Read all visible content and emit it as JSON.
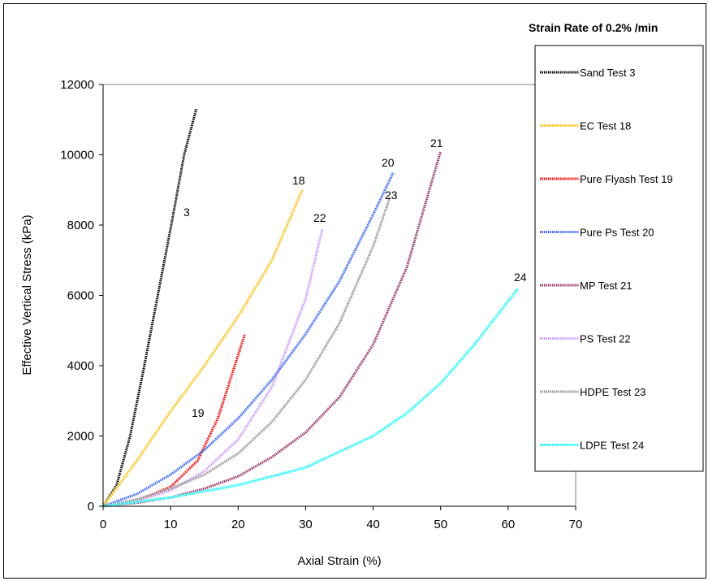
{
  "chart_data": {
    "type": "line",
    "title": "",
    "xlabel": "Axial Strain (%)",
    "ylabel": "Effective Vertical Stress (kPa)",
    "xlim": [
      0,
      70
    ],
    "ylim": [
      0,
      12000
    ],
    "x_ticks": [
      0,
      10,
      20,
      30,
      40,
      50,
      60,
      70
    ],
    "y_ticks": [
      0,
      2000,
      4000,
      6000,
      8000,
      10000,
      12000
    ],
    "grid": false,
    "legend": {
      "title": "Strain Rate of 0.2% /min",
      "placement": "right"
    },
    "series": [
      {
        "name": "Sand Test 3",
        "label": "3",
        "color": "#000000",
        "x": [
          0,
          2,
          4,
          6,
          8,
          10,
          12,
          13.8
        ],
        "y": [
          0,
          600,
          2000,
          3900,
          5900,
          7900,
          10000,
          11300
        ]
      },
      {
        "name": "EC Test 18",
        "label": "18",
        "color": "#FFC000",
        "x": [
          0,
          5,
          10,
          15,
          20,
          25,
          29.5
        ],
        "y": [
          0,
          1300,
          2700,
          4000,
          5400,
          7000,
          9000
        ]
      },
      {
        "name": "Pure Flyash Test 19",
        "label": "19",
        "color": "#FF0000",
        "x": [
          0,
          5,
          10,
          14,
          17,
          19,
          21
        ],
        "y": [
          0,
          150,
          550,
          1300,
          2500,
          3700,
          4900
        ]
      },
      {
        "name": "Pure Ps Test 20",
        "label": "20",
        "color": "#3366FF",
        "x": [
          0,
          5,
          10,
          15,
          20,
          25,
          30,
          35,
          40,
          43
        ],
        "y": [
          0,
          350,
          900,
          1600,
          2500,
          3600,
          4900,
          6400,
          8300,
          9500
        ]
      },
      {
        "name": "MP Test 21",
        "label": "21",
        "color": "#993366",
        "x": [
          0,
          5,
          10,
          15,
          20,
          25,
          30,
          35,
          40,
          45,
          50
        ],
        "y": [
          0,
          100,
          250,
          500,
          850,
          1400,
          2100,
          3100,
          4600,
          6800,
          10100
        ]
      },
      {
        "name": "PS Test 22",
        "label": "22",
        "color": "#CC99FF",
        "x": [
          0,
          5,
          10,
          15,
          20,
          25,
          30,
          32.5
        ],
        "y": [
          0,
          150,
          450,
          1000,
          1900,
          3400,
          5900,
          7900
        ]
      },
      {
        "name": "HDPE Test 23",
        "label": "23",
        "color": "#969696",
        "x": [
          0,
          5,
          10,
          15,
          20,
          25,
          30,
          35,
          40,
          42.5
        ],
        "y": [
          0,
          200,
          500,
          900,
          1500,
          2400,
          3600,
          5200,
          7400,
          8800
        ]
      },
      {
        "name": "LDPE Test 24",
        "label": "24",
        "color": "#00FFFF",
        "x": [
          0,
          10,
          20,
          30,
          40,
          45,
          50,
          55,
          61.5
        ],
        "y": [
          0,
          250,
          600,
          1100,
          2000,
          2650,
          3500,
          4600,
          6200
        ]
      }
    ]
  }
}
